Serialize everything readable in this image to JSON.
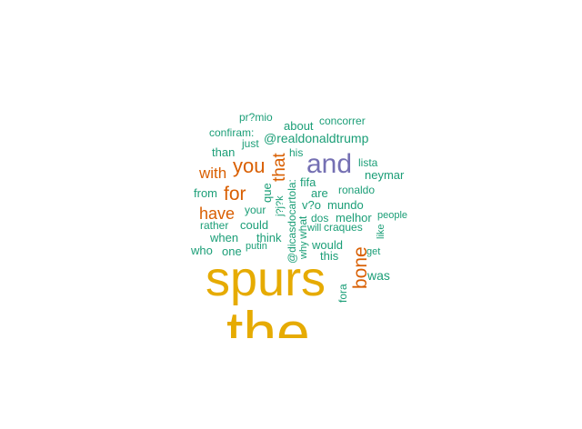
{
  "colors": {
    "large": "#e6ab02",
    "accent": "#7570b3",
    "medium": "#d95f02",
    "small": "#1b9e77"
  },
  "words": [
    {
      "text": "the",
      "group": "large"
    },
    {
      "text": "spurs",
      "group": "large"
    },
    {
      "text": "and",
      "group": "accent"
    },
    {
      "text": "you",
      "group": "medium"
    },
    {
      "text": "that",
      "group": "medium"
    },
    {
      "text": "with",
      "group": "medium"
    },
    {
      "text": "for",
      "group": "medium"
    },
    {
      "text": "have",
      "group": "medium"
    },
    {
      "text": "bone",
      "group": "medium"
    },
    {
      "text": "@realdonaldtrump",
      "group": "small"
    },
    {
      "text": "pr?mio",
      "group": "small"
    },
    {
      "text": "about",
      "group": "small"
    },
    {
      "text": "concorrer",
      "group": "small"
    },
    {
      "text": "confiram:",
      "group": "small"
    },
    {
      "text": "just",
      "group": "small"
    },
    {
      "text": "his",
      "group": "small"
    },
    {
      "text": "than",
      "group": "small"
    },
    {
      "text": "lista",
      "group": "small"
    },
    {
      "text": "neymar",
      "group": "small"
    },
    {
      "text": "fifa",
      "group": "small"
    },
    {
      "text": "ronaldo",
      "group": "small"
    },
    {
      "text": "from",
      "group": "small"
    },
    {
      "text": "que",
      "group": "small"
    },
    {
      "text": "are",
      "group": "small"
    },
    {
      "text": "v?o",
      "group": "small"
    },
    {
      "text": "mundo",
      "group": "small"
    },
    {
      "text": "your",
      "group": "small"
    },
    {
      "text": "dos",
      "group": "small"
    },
    {
      "text": "melhor",
      "group": "small"
    },
    {
      "text": "people",
      "group": "small"
    },
    {
      "text": "rather",
      "group": "small"
    },
    {
      "text": "could",
      "group": "small"
    },
    {
      "text": "will",
      "group": "small"
    },
    {
      "text": "craques",
      "group": "small"
    },
    {
      "text": "when",
      "group": "small"
    },
    {
      "text": "think",
      "group": "small"
    },
    {
      "text": "who",
      "group": "small"
    },
    {
      "text": "one",
      "group": "small"
    },
    {
      "text": "putin",
      "group": "small"
    },
    {
      "text": "would",
      "group": "small"
    },
    {
      "text": "this",
      "group": "small"
    },
    {
      "text": "get",
      "group": "small"
    },
    {
      "text": "was",
      "group": "small"
    },
    {
      "text": "fora",
      "group": "small"
    },
    {
      "text": "like",
      "group": "small"
    },
    {
      "text": "@dicasdocartola:",
      "group": "small"
    },
    {
      "text": "what",
      "group": "small"
    },
    {
      "text": "why",
      "group": "small"
    },
    {
      "text": "j?j?k",
      "group": "small"
    }
  ]
}
